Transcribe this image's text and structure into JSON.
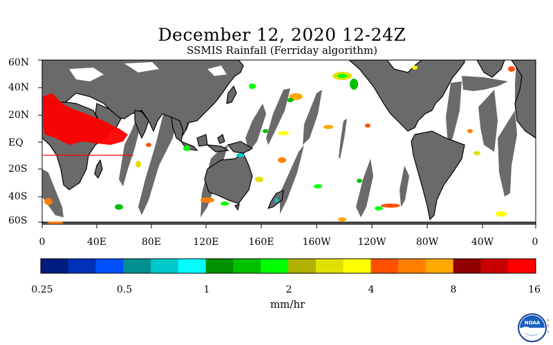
{
  "title": "December 12, 2020 12-24Z",
  "subtitle": "SSMIS Rainfall (Ferriday algorithm)",
  "lat_labels": [
    "60N",
    "40N",
    "20N",
    "EQ",
    "20S",
    "40S",
    "60S"
  ],
  "lon_labels": [
    "0",
    "40E",
    "80E",
    "120E",
    "160E",
    "160W",
    "120W",
    "80W",
    "40W",
    "0"
  ],
  "colorbar": {
    "labels": [
      "0.25",
      "0.5",
      "1",
      "2",
      "4",
      "8",
      "16"
    ],
    "units": "mm/hr",
    "colors": [
      "#001c7f",
      "#0030b8",
      "#0050ff",
      "#00908f",
      "#00c8c8",
      "#00ffff",
      "#009000",
      "#00c000",
      "#00ff00",
      "#b0b000",
      "#e0e000",
      "#ffff00",
      "#ff5000",
      "#ff8000",
      "#ffa800",
      "#900000",
      "#c80000",
      "#ff0000"
    ]
  },
  "logo": {
    "text": "NOAA",
    "side_text": "PSL"
  },
  "colors": {
    "land": "#6a6a6a",
    "swath_gap": "#6a6a6a",
    "ocean": "#ffffff",
    "heavy_rain": "#ff0000"
  }
}
